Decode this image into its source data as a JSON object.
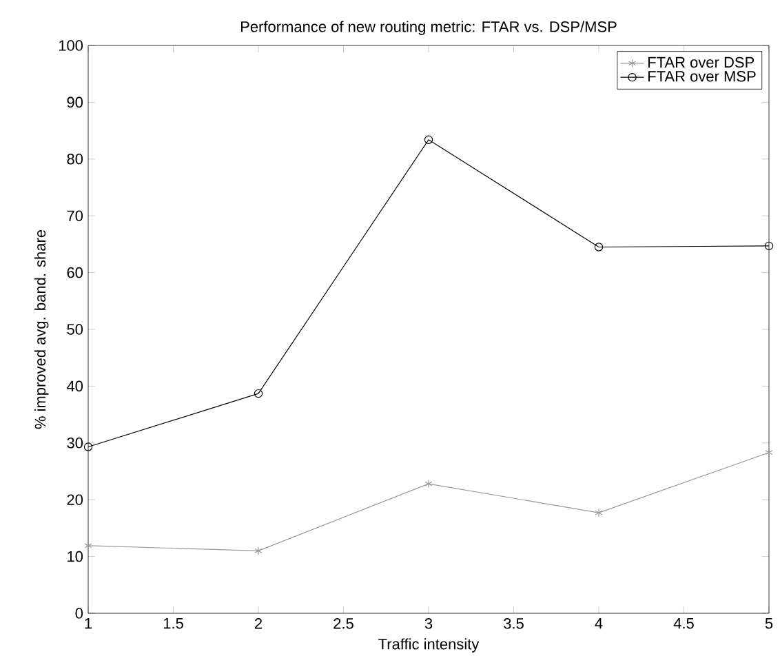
{
  "chart_data": {
    "type": "line",
    "title": "Performance of new routing metric: FTAR vs. DSP/MSP",
    "xlabel": "Traffic intensity",
    "ylabel": "% improved avg. band. share",
    "x": [
      1,
      2,
      3,
      4,
      5
    ],
    "series": [
      {
        "name": "FTAR over DSP",
        "color": "#999999",
        "marker": "cross",
        "values": [
          11.9,
          11.0,
          22.8,
          17.7,
          28.3
        ]
      },
      {
        "name": "FTAR over MSP",
        "color": "#000000",
        "marker": "circle",
        "values": [
          29.3,
          38.7,
          83.4,
          64.5,
          64.7
        ]
      }
    ],
    "xlim": [
      1,
      5
    ],
    "xticks": [
      1,
      1.5,
      2,
      2.5,
      3,
      3.5,
      4,
      4.5,
      5
    ],
    "ylim": [
      0,
      100
    ],
    "yticks": [
      0,
      10,
      20,
      30,
      40,
      50,
      60,
      70,
      80,
      90,
      100
    ],
    "grid": false,
    "legend": "top right",
    "line_style": "solid"
  }
}
